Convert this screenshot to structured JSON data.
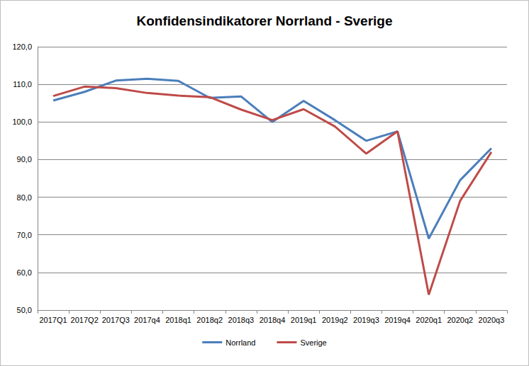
{
  "chart_data": {
    "type": "line",
    "title": "Konfidensindikatorer Norrland - Sverige",
    "categories": [
      "2017Q1",
      "2017Q2",
      "2017Q3",
      "2017q4",
      "2018q1",
      "2018q2",
      "2018q3",
      "2018q4",
      "2019q1",
      "2019q2",
      "2019q3",
      "2019q4",
      "2020q1",
      "2020q2",
      "2020q3"
    ],
    "series": [
      {
        "name": "Norrland",
        "color": "#4a7ebb",
        "values": [
          105.7,
          108.0,
          111.0,
          111.5,
          110.9,
          106.4,
          106.8,
          100.0,
          105.6,
          100.5,
          95.0,
          97.5,
          69.0,
          84.5,
          93.0
        ]
      },
      {
        "name": "Sverige",
        "color": "#be4b48",
        "values": [
          106.9,
          109.4,
          109.0,
          107.7,
          107.0,
          106.6,
          103.3,
          100.5,
          103.4,
          98.8,
          91.6,
          97.5,
          54.1,
          79.0,
          92.0
        ]
      }
    ],
    "ylim": [
      50,
      120
    ],
    "yticks": [
      {
        "value": 50,
        "label": "50,0"
      },
      {
        "value": 60,
        "label": "60,0"
      },
      {
        "value": 70,
        "label": "70,0"
      },
      {
        "value": 80,
        "label": "80,0"
      },
      {
        "value": 90,
        "label": "90,0"
      },
      {
        "value": 100,
        "label": "100,0"
      },
      {
        "value": 110,
        "label": "110,0"
      },
      {
        "value": 120,
        "label": "120,0"
      }
    ],
    "grid": true,
    "legend": "bottom"
  }
}
